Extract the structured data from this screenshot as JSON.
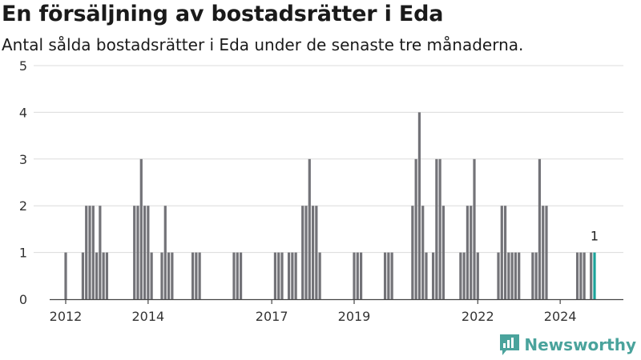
{
  "header": {
    "title": "En försäljning av bostadsrätter i Eda",
    "subtitle": "Antal sålda bostadsrätter i Eda under de senaste tre månaderna."
  },
  "brand": {
    "name": "Newsworthy",
    "color": "#4aa39c"
  },
  "chart_data": {
    "type": "bar",
    "title": "En försäljning av bostadsrätter i Eda",
    "subtitle": "Antal sålda bostadsrätter i Eda under de senaste tre månaderna.",
    "xlabel": "",
    "ylabel": "",
    "ylim": [
      0,
      5
    ],
    "yticks": [
      0,
      1,
      2,
      3,
      4,
      5
    ],
    "grid": true,
    "x_tick_labels": [
      "2012",
      "2014",
      "2017",
      "2019",
      "2022",
      "2024"
    ],
    "bar_color": "#737378",
    "highlight_color": "#1aa39a",
    "annotation": {
      "month": "2024-11",
      "label": "1"
    },
    "months": [
      "2012-01",
      "2012-02",
      "2012-03",
      "2012-04",
      "2012-05",
      "2012-06",
      "2012-07",
      "2012-08",
      "2012-09",
      "2012-10",
      "2012-11",
      "2012-12",
      "2013-01",
      "2013-02",
      "2013-03",
      "2013-04",
      "2013-05",
      "2013-06",
      "2013-07",
      "2013-08",
      "2013-09",
      "2013-10",
      "2013-11",
      "2013-12",
      "2014-01",
      "2014-02",
      "2014-03",
      "2014-04",
      "2014-05",
      "2014-06",
      "2014-07",
      "2014-08",
      "2014-09",
      "2014-10",
      "2014-11",
      "2014-12",
      "2015-01",
      "2015-02",
      "2015-03",
      "2015-04",
      "2015-05",
      "2015-06",
      "2015-07",
      "2015-08",
      "2015-09",
      "2015-10",
      "2015-11",
      "2015-12",
      "2016-01",
      "2016-02",
      "2016-03",
      "2016-04",
      "2016-05",
      "2016-06",
      "2016-07",
      "2016-08",
      "2016-09",
      "2016-10",
      "2016-11",
      "2016-12",
      "2017-01",
      "2017-02",
      "2017-03",
      "2017-04",
      "2017-05",
      "2017-06",
      "2017-07",
      "2017-08",
      "2017-09",
      "2017-10",
      "2017-11",
      "2017-12",
      "2018-01",
      "2018-02",
      "2018-03",
      "2018-04",
      "2018-05",
      "2018-06",
      "2018-07",
      "2018-08",
      "2018-09",
      "2018-10",
      "2018-11",
      "2018-12",
      "2019-01",
      "2019-02",
      "2019-03",
      "2019-04",
      "2019-05",
      "2019-06",
      "2019-07",
      "2019-08",
      "2019-09",
      "2019-10",
      "2019-11",
      "2019-12",
      "2020-01",
      "2020-02",
      "2020-03",
      "2020-04",
      "2020-05",
      "2020-06",
      "2020-07",
      "2020-08",
      "2020-09",
      "2020-10",
      "2020-11",
      "2020-12",
      "2021-01",
      "2021-02",
      "2021-03",
      "2021-04",
      "2021-05",
      "2021-06",
      "2021-07",
      "2021-08",
      "2021-09",
      "2021-10",
      "2021-11",
      "2021-12",
      "2022-01",
      "2022-02",
      "2022-03",
      "2022-04",
      "2022-05",
      "2022-06",
      "2022-07",
      "2022-08",
      "2022-09",
      "2022-10",
      "2022-11",
      "2022-12",
      "2023-01",
      "2023-02",
      "2023-03",
      "2023-04",
      "2023-05",
      "2023-06",
      "2023-07",
      "2023-08",
      "2023-09",
      "2023-10",
      "2023-11",
      "2023-12",
      "2024-01",
      "2024-02",
      "2024-03",
      "2024-04",
      "2024-05",
      "2024-06",
      "2024-07",
      "2024-08",
      "2024-09",
      "2024-10",
      "2024-11"
    ],
    "values": [
      1,
      0,
      0,
      0,
      0,
      1,
      2,
      2,
      2,
      1,
      2,
      1,
      1,
      0,
      0,
      0,
      0,
      0,
      0,
      0,
      2,
      2,
      3,
      2,
      2,
      1,
      0,
      0,
      1,
      2,
      1,
      1,
      0,
      0,
      0,
      0,
      0,
      1,
      1,
      1,
      0,
      0,
      0,
      0,
      0,
      0,
      0,
      0,
      0,
      1,
      1,
      1,
      0,
      0,
      0,
      0,
      0,
      0,
      0,
      0,
      0,
      1,
      1,
      1,
      0,
      1,
      1,
      1,
      0,
      2,
      2,
      3,
      2,
      2,
      1,
      0,
      0,
      0,
      0,
      0,
      0,
      0,
      0,
      0,
      1,
      1,
      1,
      0,
      0,
      0,
      0,
      0,
      0,
      1,
      1,
      1,
      0,
      0,
      0,
      0,
      0,
      2,
      3,
      4,
      2,
      1,
      0,
      1,
      3,
      3,
      2,
      0,
      0,
      0,
      0,
      1,
      1,
      2,
      2,
      3,
      1,
      0,
      0,
      0,
      0,
      0,
      1,
      2,
      2,
      1,
      1,
      1,
      1,
      0,
      0,
      0,
      1,
      1,
      3,
      2,
      2,
      0,
      0,
      0,
      0,
      0,
      0,
      0,
      0,
      1,
      1,
      1,
      0,
      1,
      1
    ]
  }
}
